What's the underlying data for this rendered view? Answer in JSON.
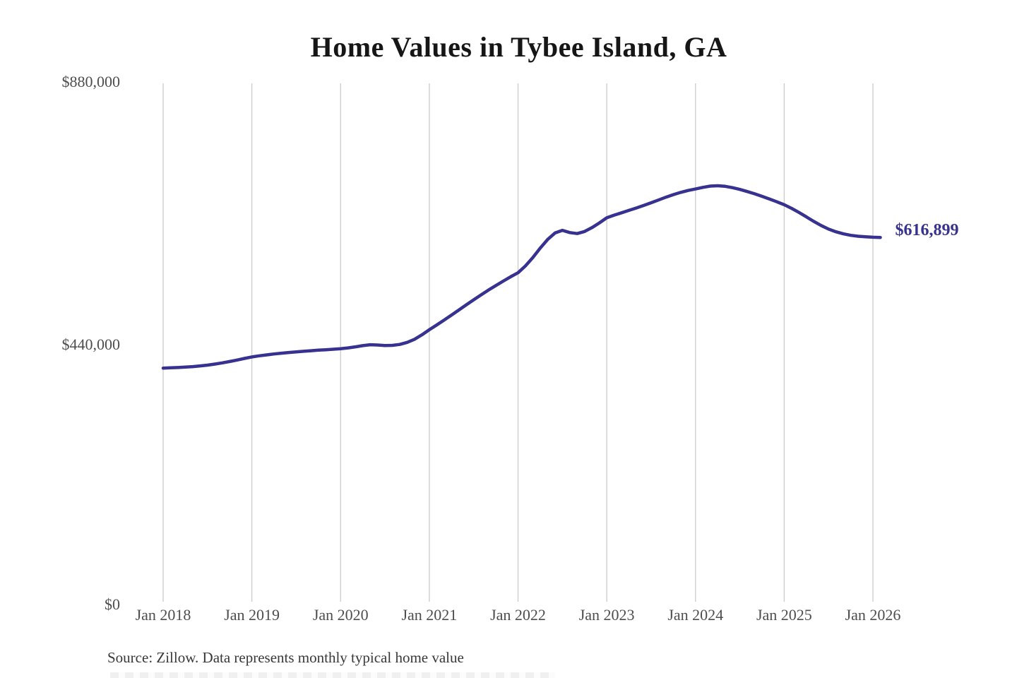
{
  "title": "Home Values in Tybee Island, GA",
  "end_label": "$616,899",
  "source_note": "Source: Zillow. Data represents monthly typical home value",
  "colors": {
    "line": "#37328f",
    "end_label": "#37328f",
    "grid": "#cbcbcb",
    "axis_text": "#4d4d4d",
    "title_text": "#161616",
    "source_text": "#383838",
    "background": "#ffffff"
  },
  "chart_data": {
    "type": "line",
    "title": "Home Values in Tybee Island, GA",
    "xlabel": "",
    "ylabel": "",
    "ylim": [
      0,
      880000
    ],
    "y_tick_labels": [
      "$0",
      "$440,000",
      "$880,000"
    ],
    "y_tick_values": [
      0,
      440000,
      880000
    ],
    "x_tick_labels": [
      "Jan 2018",
      "Jan 2019",
      "Jan 2020",
      "Jan 2021",
      "Jan 2022",
      "Jan 2023",
      "Jan 2024",
      "Jan 2025",
      "Jan 2026"
    ],
    "grid": "vertical-gridlines-only",
    "legend": "none",
    "last_value": 616899,
    "series": [
      {
        "name": "Monthly typical home value",
        "x_start": "Jan 2018",
        "x_frequency": "monthly",
        "x_end": "Feb 2026",
        "values": [
          397000,
          397400,
          397900,
          398600,
          399500,
          400600,
          402000,
          403700,
          405700,
          408000,
          410500,
          413200,
          415800,
          417600,
          419200,
          420700,
          422000,
          423200,
          424300,
          425300,
          426200,
          427100,
          427900,
          428700,
          429600,
          431000,
          432800,
          434800,
          436300,
          435800,
          435000,
          435300,
          436800,
          440200,
          445500,
          453000,
          461500,
          469500,
          477800,
          486300,
          494800,
          503500,
          512000,
          520300,
          528300,
          536000,
          543500,
          550700,
          557500,
          569000,
          583000,
          599000,
          613500,
          624500,
          629000,
          625200,
          623500,
          627000,
          633500,
          641500,
          650000,
          654500,
          658500,
          662500,
          666500,
          670800,
          675300,
          680000,
          684700,
          689000,
          692800,
          696000,
          698500,
          701300,
          703400,
          704000,
          703000,
          700800,
          697800,
          694300,
          690400,
          686200,
          681700,
          677000,
          672000,
          666000,
          659000,
          651500,
          644000,
          637000,
          631000,
          626500,
          623000,
          620500,
          619000,
          618000,
          617300,
          616899
        ]
      }
    ]
  }
}
